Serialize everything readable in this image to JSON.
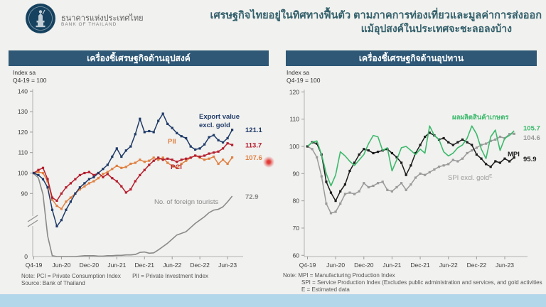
{
  "header": {
    "logo": {
      "org_th": "ธนาคารแห่งประเทศไทย",
      "org_en": "BANK OF THAILAND",
      "circle_color": "#16425f"
    },
    "title_line1": "เศรษฐกิจไทยอยู่ในทิศทางฟื้นตัว ตามภาคการท่องเที่ยวและมูลค่าการส่งออก",
    "title_line2": "แม้อุปสงค์ในประเทศจะชะลอลงบ้าง",
    "title_color": "#33606b"
  },
  "panels": [
    {
      "header": "เครื่องชี้เศรษฐกิจด้านอุปสงค์",
      "unit_line1": "Index sa",
      "unit_line2": "Q4-19 = 100",
      "note_line1a": "Note: PCI = Private Consumption Index",
      "note_line1b": "PII = Private Investment Index",
      "note_line2": "Source: Bank of Thailand"
    },
    {
      "header": "เครื่องชี้เศรษฐกิจด้านอุปทาน",
      "unit_line1": "Index sa",
      "unit_line2": "Q4-19 = 100",
      "note_lines": [
        "Note: MPI = Manufacturing Production Index",
        "SPI = Service Production Index (Excludes public administration and services, and gold activities",
        "E = Estimated data"
      ]
    }
  ],
  "chart_data": [
    {
      "type": "line",
      "title": "เครื่องชี้เศรษฐกิจด้านอุปสงค์",
      "ylabel": "Index sa, Q4-19 = 100",
      "x_tick_labels": [
        "Q4-19",
        "Jun-20",
        "Dec-20",
        "Jun-21",
        "Dec-21",
        "Jun-22",
        "Dec-22",
        "Jun-23"
      ],
      "x_frequency": "monthly, Q4-19 then Jan-20 through Jul-23",
      "y_ticks": [
        140,
        130,
        120,
        110,
        100,
        90
      ],
      "y_axis_break": true,
      "y_zero_label": "0",
      "ylim": [
        60,
        140
      ],
      "grid": false,
      "series": [
        {
          "name": "export-value-excl-gold",
          "label": "Export value",
          "label2": "excl. gold",
          "color": "#1f3a68",
          "markers": true,
          "end_value": "121.1",
          "values": [
            100,
            99,
            97,
            93,
            82,
            74,
            77,
            82,
            86,
            90,
            93,
            95,
            97,
            98,
            100,
            102,
            104,
            108,
            112,
            108,
            111,
            113,
            119,
            126.5,
            120,
            120.5,
            120,
            125.5,
            129,
            124,
            122,
            119.5,
            118,
            117,
            113,
            111.5,
            112,
            114,
            117.5,
            118.5,
            116,
            115,
            117,
            121.1
          ]
        },
        {
          "name": "pci",
          "label": "PCI",
          "color": "#b51f2e",
          "markers": true,
          "end_value": "113.7",
          "values": [
            100,
            101.5,
            102.5,
            97,
            88,
            86.5,
            90,
            93,
            95,
            97,
            99,
            100,
            100.5,
            99,
            100,
            98,
            99.5,
            97.5,
            96,
            93.5,
            90.5,
            92,
            96,
            99,
            101.5,
            104,
            106,
            107.5,
            106.5,
            107,
            106.5,
            105.5,
            106.5,
            107,
            107.5,
            108.5,
            108,
            108.5,
            109.5,
            110,
            110.5,
            112,
            114.5,
            113.7
          ]
        },
        {
          "name": "pii",
          "label": "PII",
          "color": "#e08142",
          "markers": true,
          "end_value": "107.6",
          "values": [
            100,
            100.5,
            100,
            96,
            87,
            84,
            82.5,
            86,
            88,
            90,
            92,
            93.5,
            95,
            96,
            97.5,
            99.5,
            100.5,
            102,
            103.5,
            102.5,
            103,
            104.5,
            105,
            106.5,
            105.5,
            106,
            107.5,
            106.5,
            107.5,
            105,
            103.5,
            102.5,
            104.5,
            106,
            107.5,
            108.5,
            107.5,
            106.5,
            107,
            108,
            104.5,
            106.5,
            104.5,
            107.6
          ]
        },
        {
          "name": "foreign-tourists",
          "label": "No. of foreign tourists",
          "color": "#8a8a8a",
          "markers": false,
          "scale": "secondary",
          "end_value": "72.9",
          "values": [
            100,
            95,
            75,
            25,
            1,
            0,
            0,
            0,
            0,
            0,
            0.5,
            1,
            1,
            1,
            0.5,
            0.5,
            1,
            1,
            1.5,
            1.5,
            2,
            2,
            2.5,
            5,
            5.5,
            4,
            4.5,
            8,
            12,
            16,
            21,
            26,
            28,
            30,
            35,
            40,
            44,
            48,
            53,
            56,
            57,
            60,
            66,
            72.9
          ]
        }
      ]
    },
    {
      "type": "line",
      "title": "เครื่องชี้เศรษฐกิจด้านอุปทาน",
      "ylabel": "Index sa, Q4-19 = 100",
      "x_tick_labels": [
        "Q4-19",
        "Jun-20",
        "Dec-20",
        "Jun-21",
        "Dec-21",
        "Jun-22",
        "Dec-22",
        "Jun-23"
      ],
      "x_frequency": "monthly, Q4-19 then Jan-20 through Aug-23",
      "y_ticks": [
        120,
        110,
        100,
        90,
        80,
        70,
        60
      ],
      "y_axis_break": false,
      "ylim": [
        60,
        120
      ],
      "grid": false,
      "series": [
        {
          "name": "agri-production",
          "label": "ผลผลิตสินค้าเกษตร",
          "color": "#3cba6c",
          "markers": false,
          "end_value": "105.7",
          "values": [
            100,
            101.5,
            102,
            97,
            90,
            85.5,
            89.5,
            98,
            96.5,
            94.5,
            93,
            95,
            97,
            101,
            104,
            103.5,
            98.5,
            99.5,
            91,
            95,
            99.5,
            100,
            98.5,
            97,
            99,
            97.5,
            107.5,
            104,
            102.5,
            98,
            96.5,
            97.5,
            99.5,
            100.5,
            103,
            107.5,
            104.5,
            99,
            95.5,
            103.5,
            106,
            98.5,
            103,
            104,
            105.7
          ]
        },
        {
          "name": "spi-excl-gold",
          "label": "SPI excl. gold",
          "label_sup": "E",
          "color": "#9a9a9a",
          "markers": true,
          "end_value": "104.6",
          "values": [
            100,
            99,
            96,
            89,
            79,
            75.5,
            76,
            79,
            82.5,
            83,
            82.5,
            83.5,
            86.5,
            85,
            85.5,
            86.5,
            87,
            84,
            83.5,
            85,
            86.5,
            84,
            86,
            88.5,
            90,
            89.5,
            90.5,
            91.5,
            92.5,
            93,
            93.5,
            95,
            94.5,
            95.5,
            97.5,
            98.5,
            99.5,
            100.5,
            101,
            102,
            102.5,
            103.5,
            103,
            104.5,
            104.6
          ]
        },
        {
          "name": "mpi",
          "label": "MPI",
          "color": "#1c1c1c",
          "markers": true,
          "end_value": "95.9",
          "values": [
            100,
            101.5,
            101,
            97,
            87,
            83,
            80,
            83.5,
            86,
            91,
            94,
            97,
            99,
            98.5,
            97.5,
            98,
            98.5,
            99,
            97.5,
            96,
            94,
            89.5,
            93,
            97.5,
            100.5,
            103.5,
            105,
            104,
            102.5,
            103,
            101.5,
            100.5,
            101.5,
            102.5,
            101.5,
            100.5,
            97,
            95.5,
            93.5,
            92.5,
            94.5,
            94,
            95.5,
            94.5,
            95.9
          ]
        }
      ]
    }
  ],
  "laser_dot_color": "#e1302c",
  "bottom_bar_color": "#b3d7ea"
}
